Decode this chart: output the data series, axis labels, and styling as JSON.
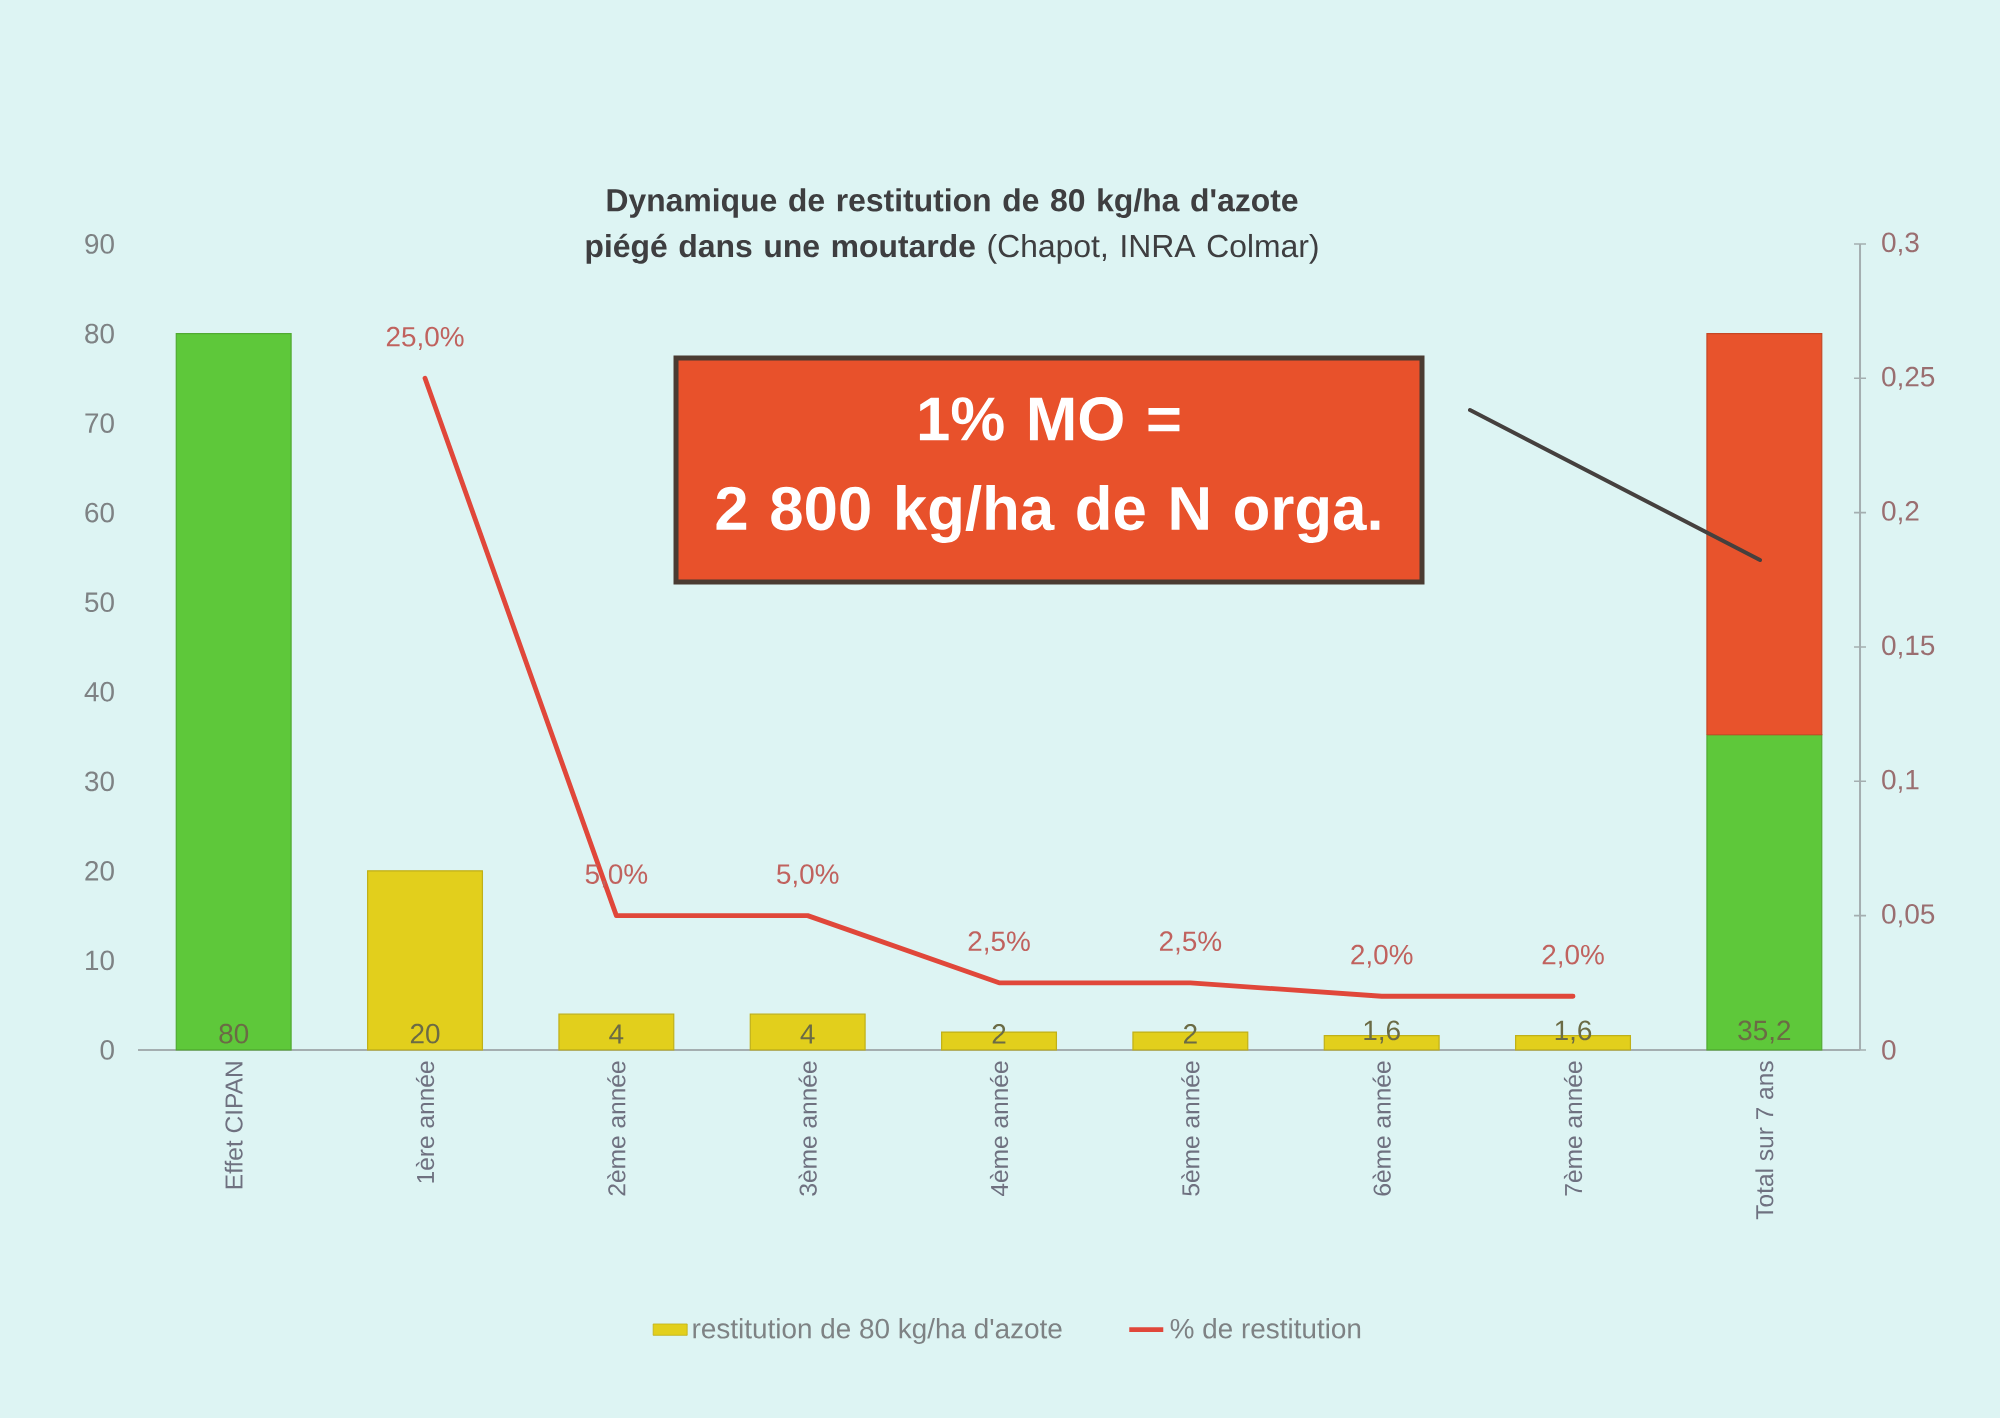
{
  "chart_data": {
    "type": "bar",
    "title": "**Dynamique de restitution de 80 kg/ha d'azote piégé dans une moutarde** (Chapot, INRA Colmar)",
    "categories": [
      "Effet CIPAN",
      "1ère année",
      "2ème année",
      "3ème année",
      "4ème année",
      "5ème année",
      "6ème année",
      "7ème année",
      "Total sur 7 ans"
    ],
    "series": [
      {
        "name": "restitution de 80 kg/ha d'azote",
        "color": "#e2cf1c",
        "colors": [
          "#5ec83a",
          "#e2cf1c",
          "#e2cf1c",
          "#e2cf1c",
          "#e2cf1c",
          "#e2cf1c",
          "#e2cf1c",
          "#e2cf1c",
          "#5ec83a"
        ],
        "values": [
          80,
          20,
          4,
          4,
          2,
          2,
          1.6,
          1.6,
          35.2
        ],
        "value_labels": [
          "80",
          "20",
          "4",
          "4",
          "2",
          "2",
          "1,6",
          "1,6",
          "35,2"
        ]
      },
      {
        "color": "#e8532c",
        "values": [
          null,
          null,
          null,
          null,
          null,
          null,
          null,
          null,
          44.8
        ]
      },
      {
        "name": "% de restitution",
        "type": "line",
        "axis": "y2",
        "color": "#e0473a",
        "values": [
          null,
          0.25,
          0.05,
          0.05,
          0.025,
          0.025,
          0.02,
          0.02,
          null
        ],
        "value_labels": [
          null,
          "25,0%",
          "5,0%",
          "5,0%",
          "2,5%",
          "2,5%",
          "2,0%",
          "2,0%",
          null
        ]
      }
    ],
    "stacked": true,
    "ylim": [
      0,
      90
    ],
    "yticks": [
      0,
      10,
      20,
      30,
      40,
      50,
      60,
      70,
      80,
      90
    ],
    "y2lim": [
      0,
      0.3
    ],
    "y2ticks": [
      0,
      {
        "value": 0.05,
        "label": "0,05"
      },
      {
        "value": 0.1,
        "label": "0,1"
      },
      {
        "value": 0.15,
        "label": "0,15"
      },
      {
        "value": 0.2,
        "label": "0,2"
      },
      {
        "value": 0.25,
        "label": "0,25"
      },
      {
        "value": 0.3,
        "label": "0,3"
      }
    ],
    "legend": "bottom",
    "annotations": [
      "1% MO =\n2 800 kg/ha de N orga."
    ]
  }
}
